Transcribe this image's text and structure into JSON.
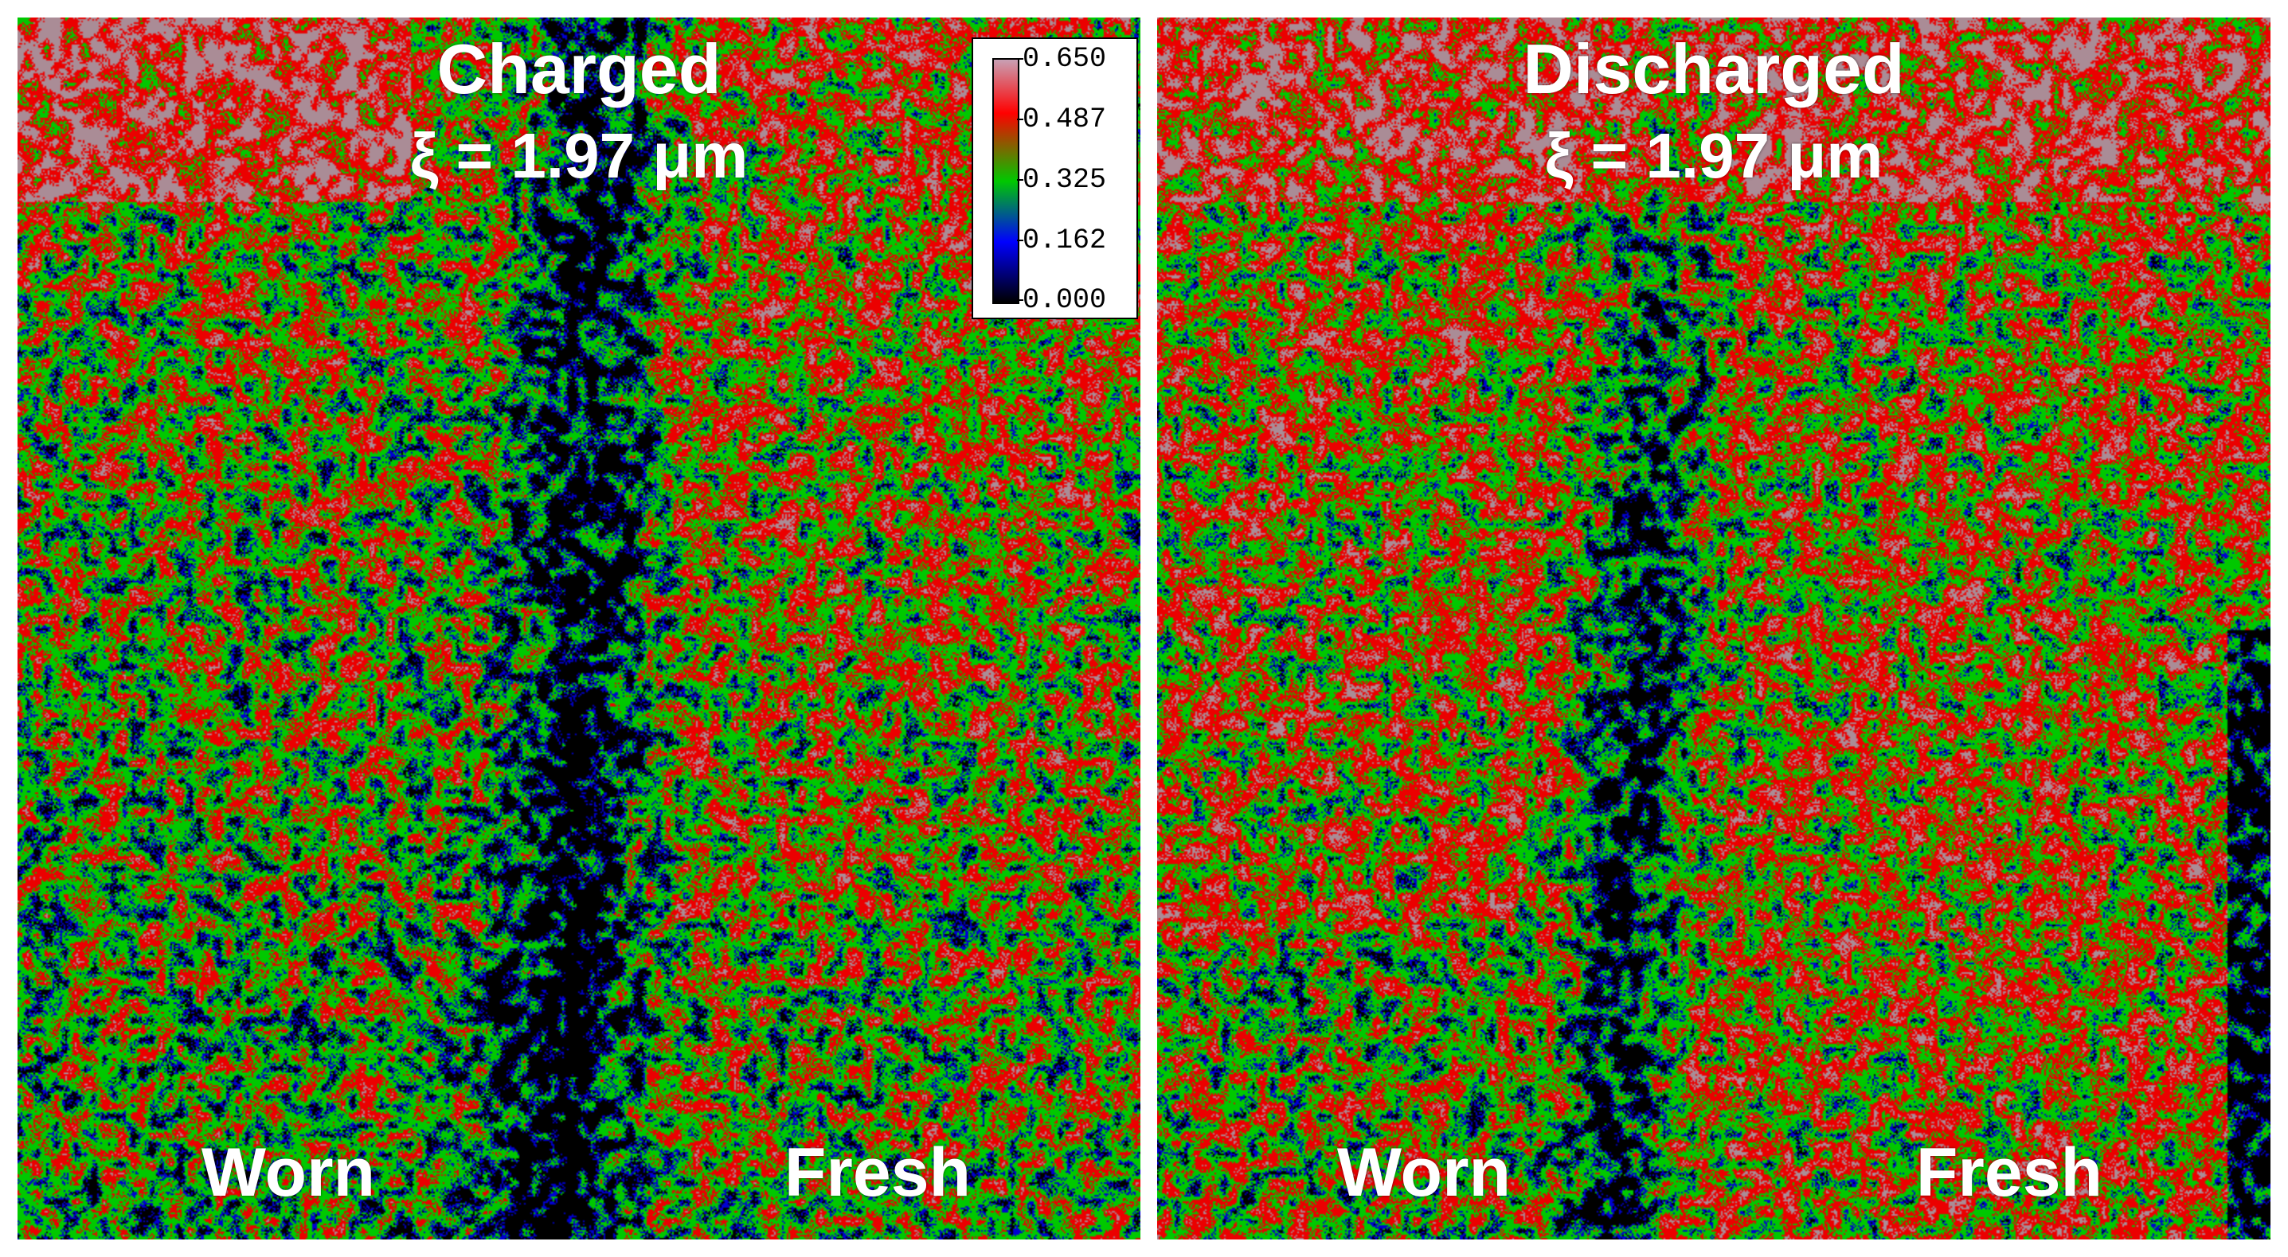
{
  "panels": [
    {
      "title": "Charged",
      "subtitle": "ξ = 1.97 μm",
      "left_label": "Worn",
      "right_label": "Fresh"
    },
    {
      "title": "Discharged",
      "subtitle": "ξ = 1.97 μm",
      "left_label": "Worn",
      "right_label": "Fresh"
    }
  ],
  "colorbar": {
    "ticks": [
      "0.650",
      "0.487",
      "0.325",
      "0.162",
      "0.000"
    ],
    "colors": [
      "#c8a0b4",
      "#ff0000",
      "#00c800",
      "#0000ff",
      "#000000"
    ]
  }
}
